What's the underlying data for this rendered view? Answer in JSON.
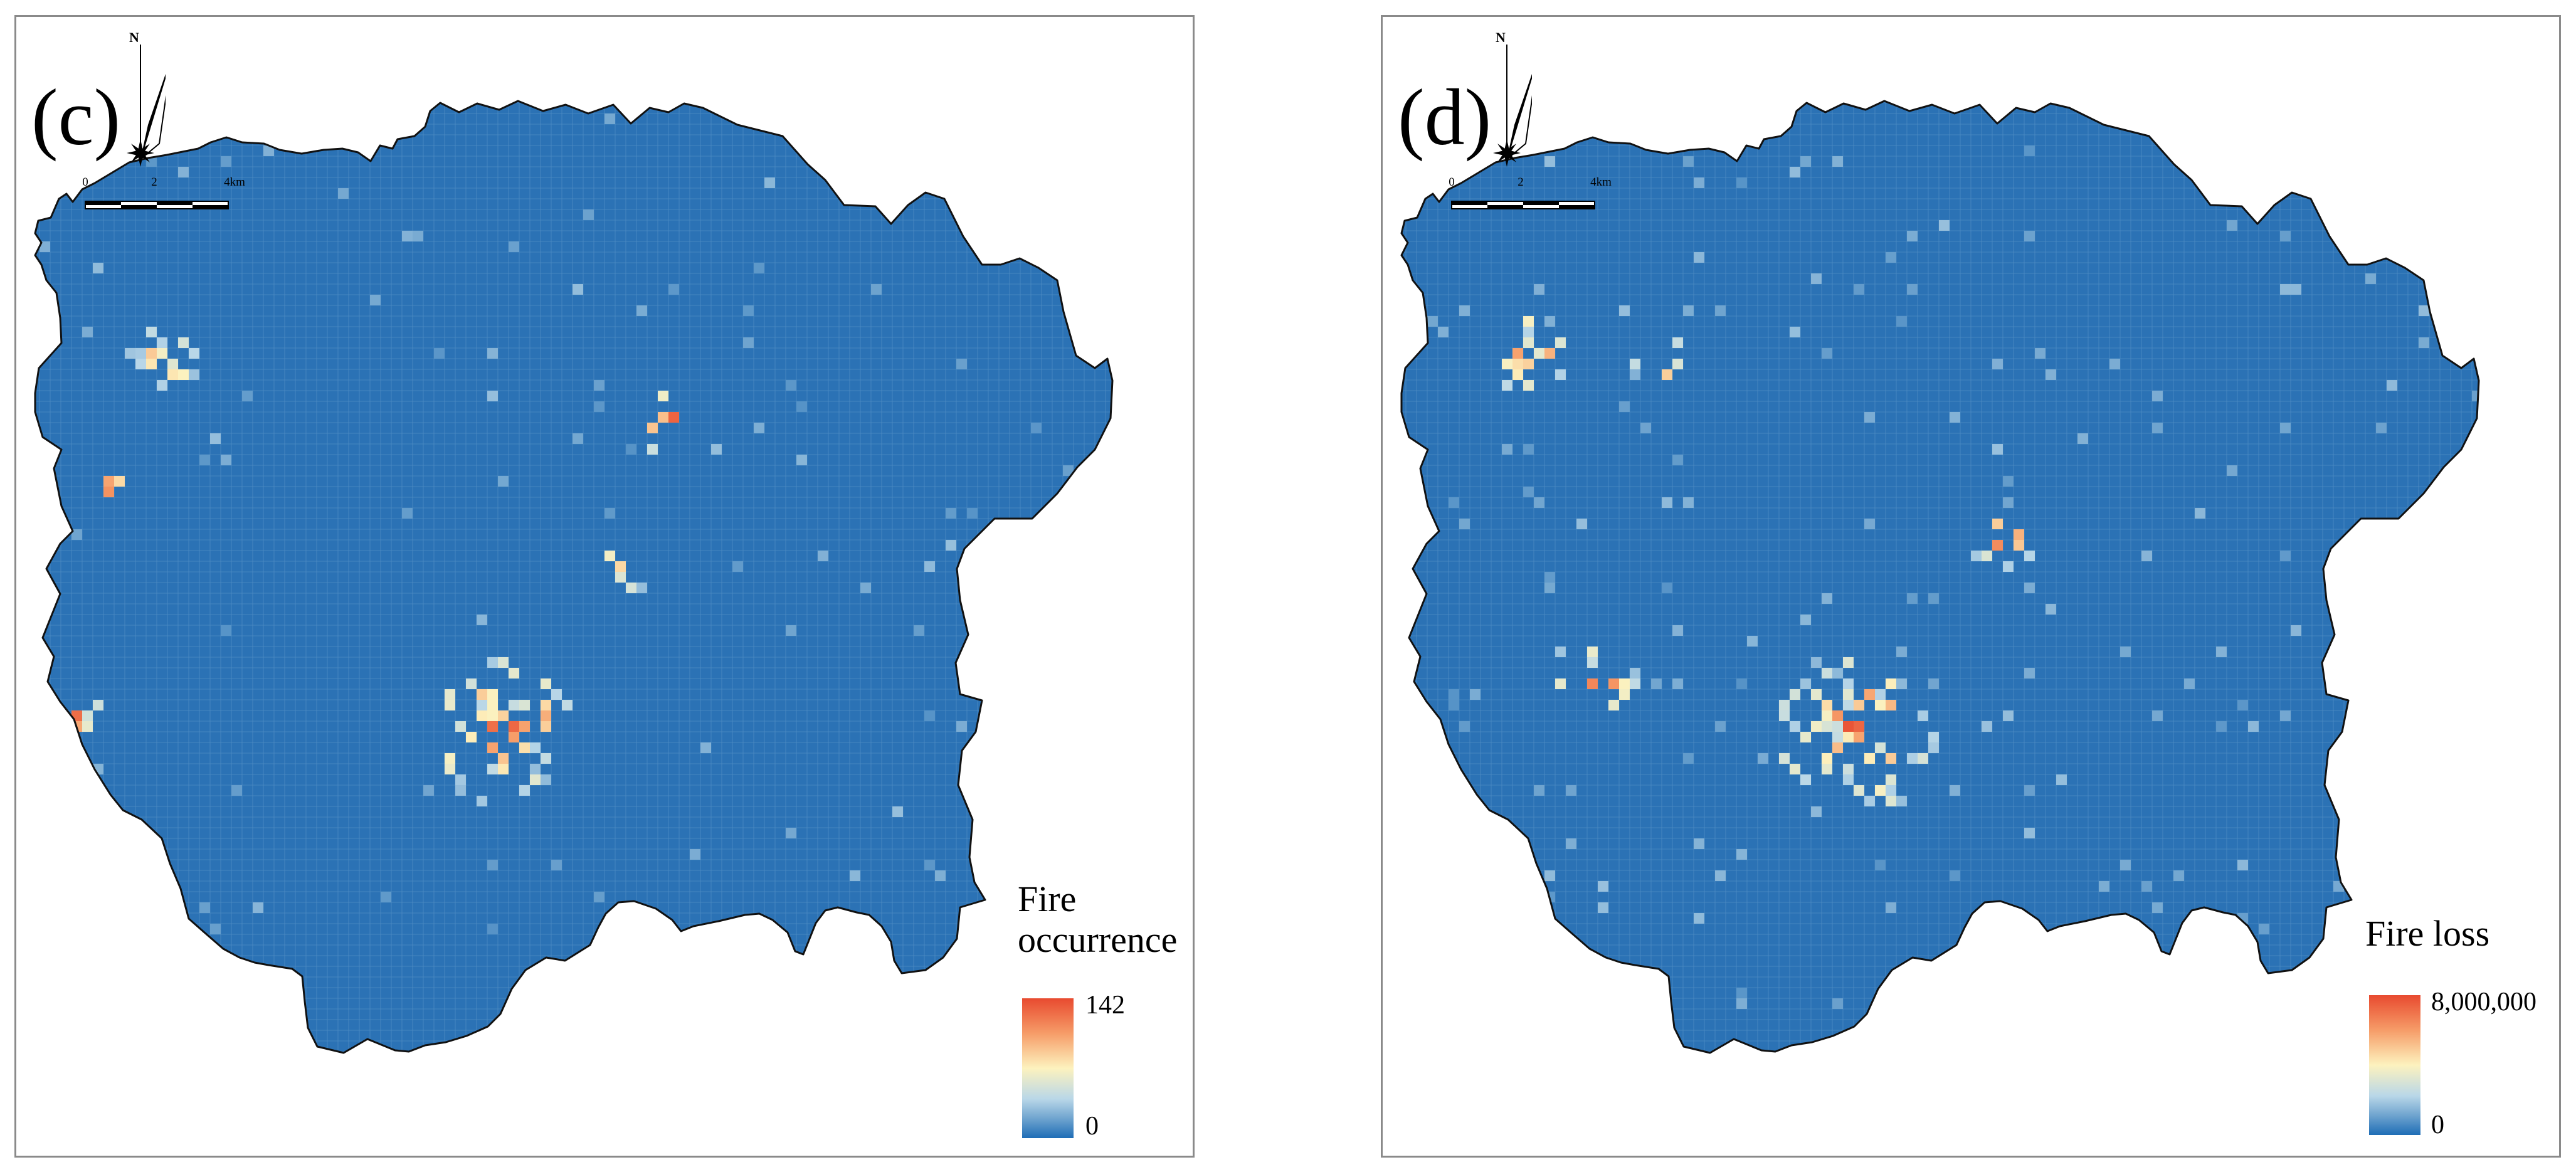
{
  "colors": {
    "base": "#2b72b5",
    "grid": "#4f8cc4",
    "outline": "#111111",
    "ramp": [
      "#1e6db6",
      "#6fa4cf",
      "#b9d7e8",
      "#fdf2be",
      "#f69c68",
      "#e84a2f"
    ]
  },
  "panels": [
    {
      "id": "c",
      "label": "(c)",
      "north_label": "N",
      "scale_ticks": [
        "0",
        "2",
        "4km"
      ],
      "legend": {
        "title": "Fire occurrence",
        "max_label": "142",
        "min_label": "0",
        "min": 0,
        "max": 142
      }
    },
    {
      "id": "d",
      "label": "(d)",
      "north_label": "N",
      "scale_ticks": [
        "0",
        "2",
        "4km"
      ],
      "legend": {
        "title": "Fire loss",
        "max_label": "8,000,000",
        "min_label": "0",
        "min": 0,
        "max": 8000000
      }
    }
  ]
}
